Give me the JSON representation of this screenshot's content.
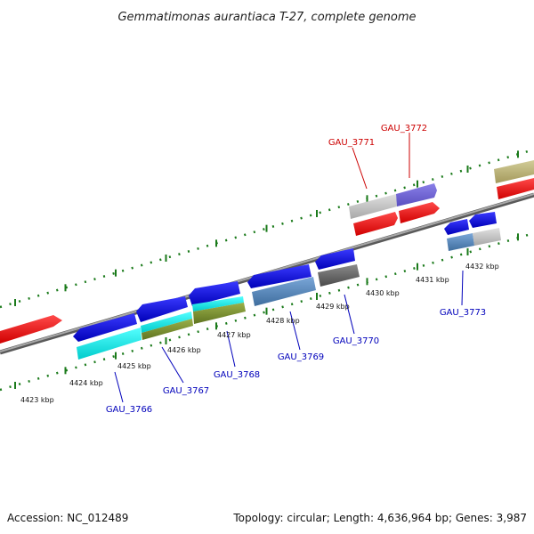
{
  "title": "Gemmatimonas aurantiaca T-27, complete genome",
  "footer": {
    "accession": "Accession: NC_012489",
    "summary": "Topology: circular; Length: 4,636,964 bp; Genes: 3,987"
  },
  "colors": {
    "backbone": "#7f7f7f",
    "tick": "#1a7a1a",
    "label_forward": "#cc0000",
    "label_reverse": "#0000bb"
  },
  "ticks": [
    "4423 kbp",
    "4424 kbp",
    "4425 kbp",
    "4426 kbp",
    "4427 kbp",
    "4428 kbp",
    "4429 kbp",
    "4430 kbp",
    "4431 kbp",
    "4432 kbp"
  ],
  "gene_labels": [
    {
      "text": "GAU_3766",
      "strand": "reverse"
    },
    {
      "text": "GAU_3767",
      "strand": "reverse"
    },
    {
      "text": "GAU_3768",
      "strand": "reverse"
    },
    {
      "text": "GAU_3769",
      "strand": "reverse"
    },
    {
      "text": "GAU_3770",
      "strand": "reverse"
    },
    {
      "text": "GAU_3771",
      "strand": "forward"
    },
    {
      "text": "GAU_3772",
      "strand": "forward"
    },
    {
      "text": "GAU_3773",
      "strand": "reverse"
    }
  ]
}
